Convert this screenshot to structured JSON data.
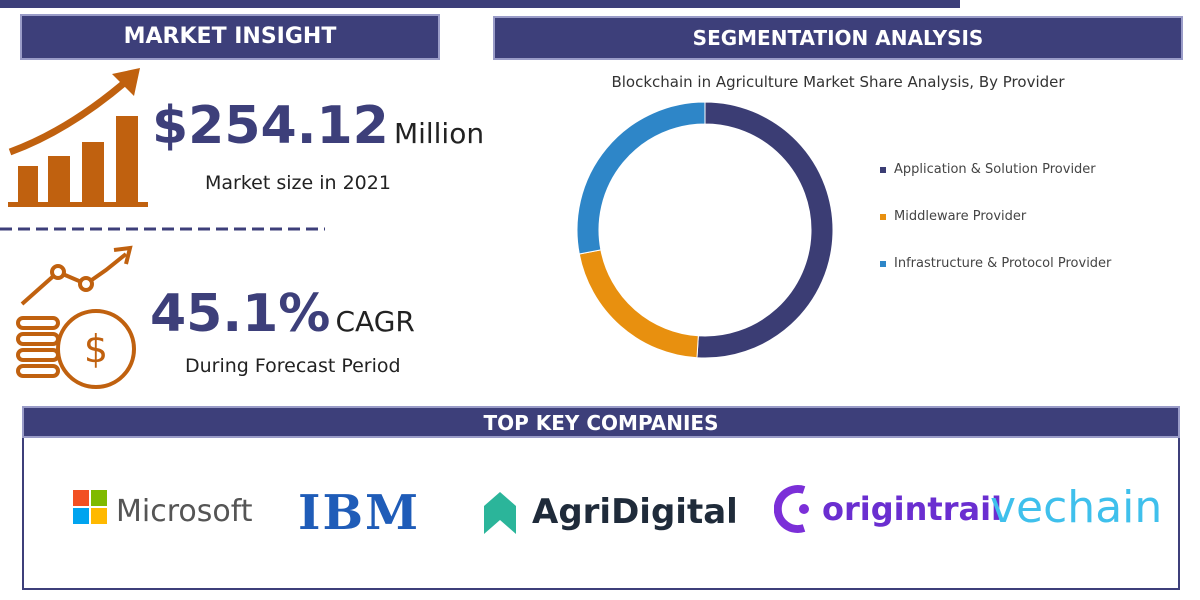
{
  "market_insight": {
    "heading": "MARKET INSIGHT",
    "market_size": "$254.12",
    "market_size_unit": "Million",
    "market_size_caption": "Market size in 2021",
    "cagr": "45.1%",
    "cagr_unit": "CAGR",
    "cagr_caption": "During Forecast Period"
  },
  "segmentation": {
    "heading": "SEGMENTATION ANALYSIS"
  },
  "chart_data": {
    "type": "donut",
    "title": "Blockchain in Agriculture Market Share Analysis, By Provider",
    "categories": [
      "Application & Solution Provider",
      "Middleware Provider",
      "Infrastructure & Protocol Provider"
    ],
    "values": [
      51,
      21,
      28
    ],
    "colors": [
      "#3b3d74",
      "#e8900f",
      "#2e86c8"
    ]
  },
  "companies": {
    "heading": "TOP KEY COMPANIES",
    "names": [
      "Microsoft",
      "IBM",
      "AgriDigital",
      "origintrail",
      "vechain"
    ]
  }
}
